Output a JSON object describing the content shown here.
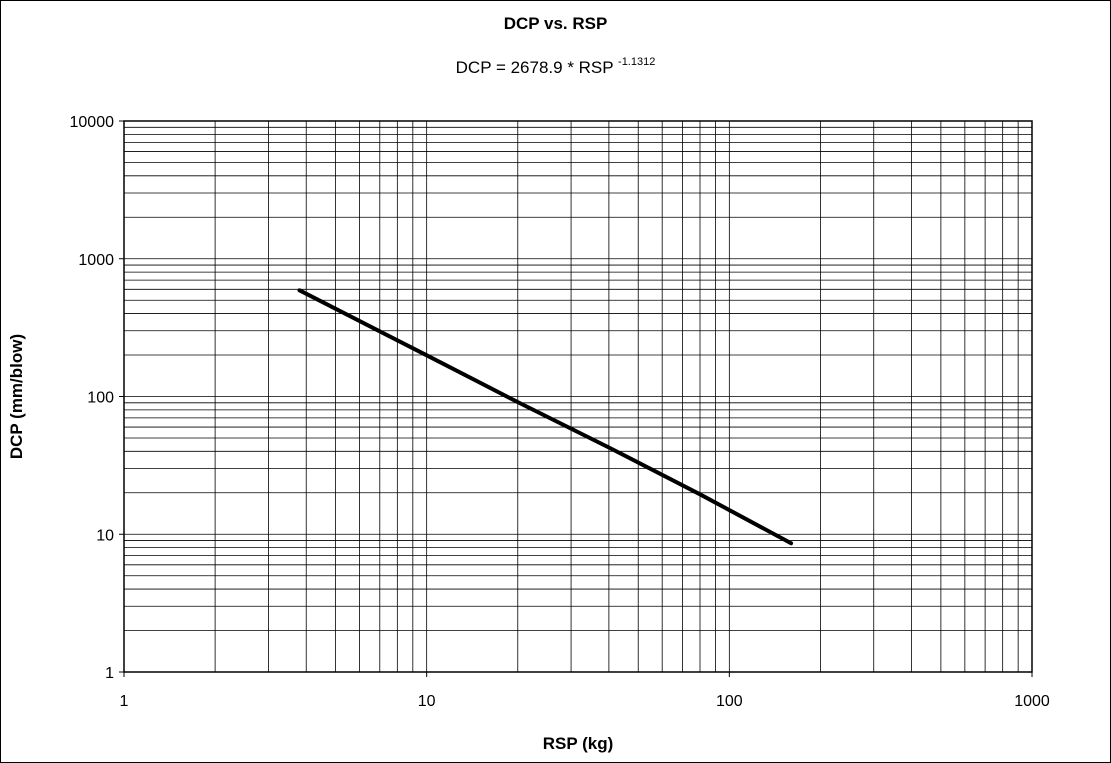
{
  "chart_data": {
    "type": "line",
    "title": "DCP vs. RSP",
    "subtitle": {
      "prefix": "DCP = 2678.9 * RSP ",
      "exponent": "-1.1312"
    },
    "xlabel": "RSP (kg)",
    "ylabel": "DCP (mm/blow)",
    "xscale": "log",
    "yscale": "log",
    "xlim": [
      1,
      1000
    ],
    "ylim": [
      1,
      10000
    ],
    "x_tick_labels": [
      "1",
      "10",
      "100",
      "1000"
    ],
    "y_tick_labels": [
      "1",
      "10",
      "100",
      "1000",
      "10000"
    ],
    "grid": true,
    "legend": "none",
    "line_color": "#000000",
    "series": [
      {
        "x": [
          3.8,
          10,
          20,
          40,
          80,
          160
        ],
        "y": [
          590,
          199,
          91,
          42.6,
          19.5,
          8.6
        ]
      }
    ]
  }
}
